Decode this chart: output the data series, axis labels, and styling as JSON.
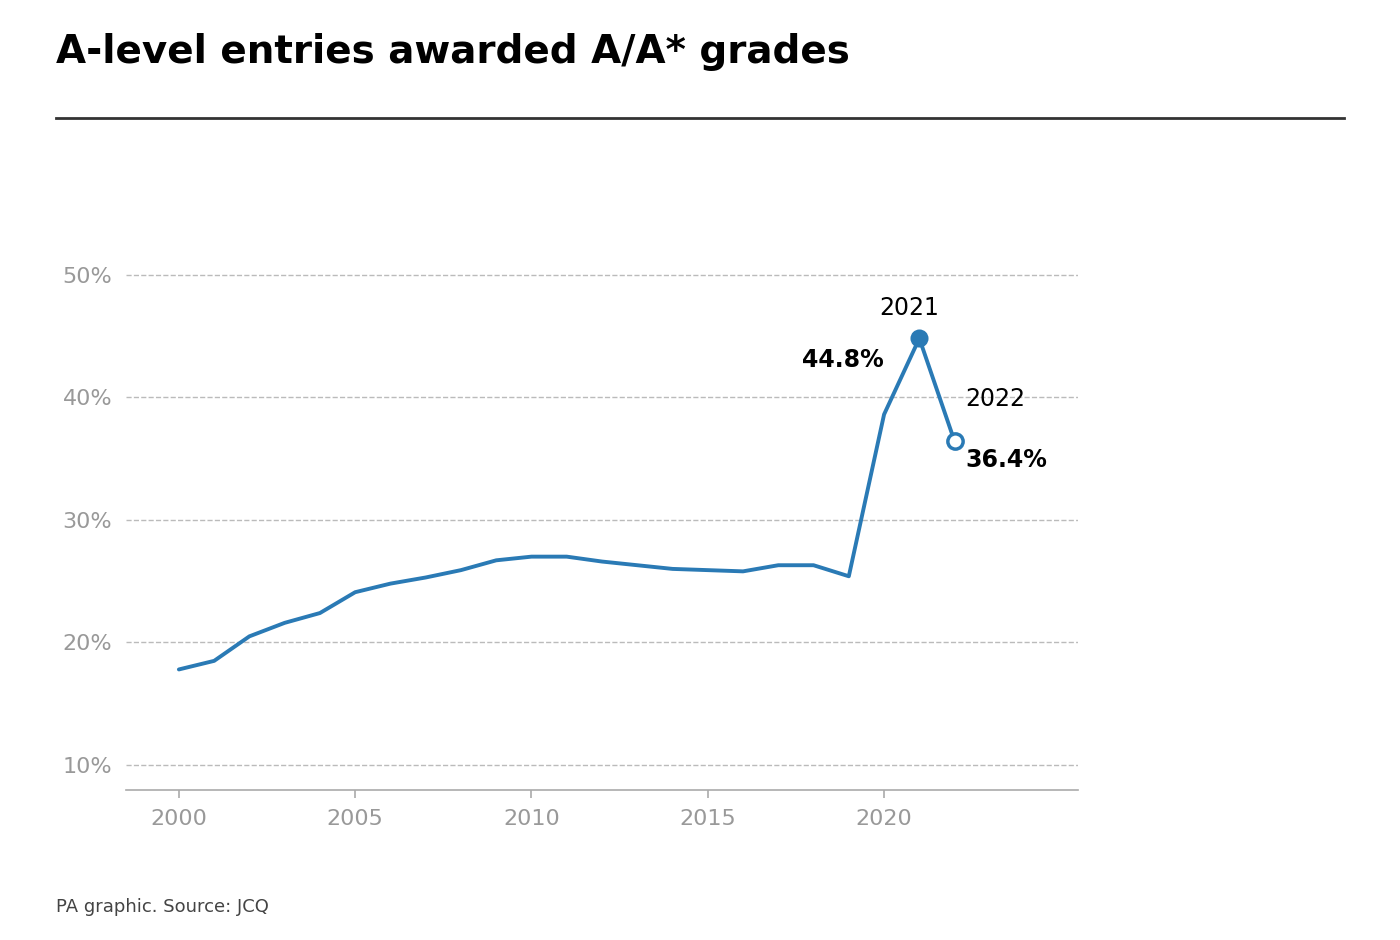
{
  "title": "A-level entries awarded A/A* grades",
  "source": "PA graphic. Source: JCQ",
  "line_color": "#2a7ab5",
  "background_color": "#ffffff",
  "years": [
    2000,
    2001,
    2002,
    2003,
    2004,
    2005,
    2006,
    2007,
    2008,
    2009,
    2010,
    2011,
    2012,
    2013,
    2014,
    2015,
    2016,
    2017,
    2018,
    2019,
    2020,
    2021,
    2022
  ],
  "values": [
    17.8,
    18.5,
    20.5,
    21.6,
    22.4,
    24.1,
    24.8,
    25.3,
    25.9,
    26.7,
    27.0,
    27.0,
    26.6,
    26.3,
    26.0,
    25.9,
    25.8,
    26.3,
    26.3,
    25.4,
    38.6,
    44.8,
    36.4
  ],
  "ylim": [
    8,
    54
  ],
  "yticks": [
    10,
    20,
    30,
    40,
    50
  ],
  "xlim": [
    1998.5,
    2025.5
  ],
  "xticks": [
    2000,
    2005,
    2010,
    2015,
    2020
  ],
  "tick_color": "#999999",
  "grid_color": "#bbbbbb",
  "spine_color": "#aaaaaa"
}
